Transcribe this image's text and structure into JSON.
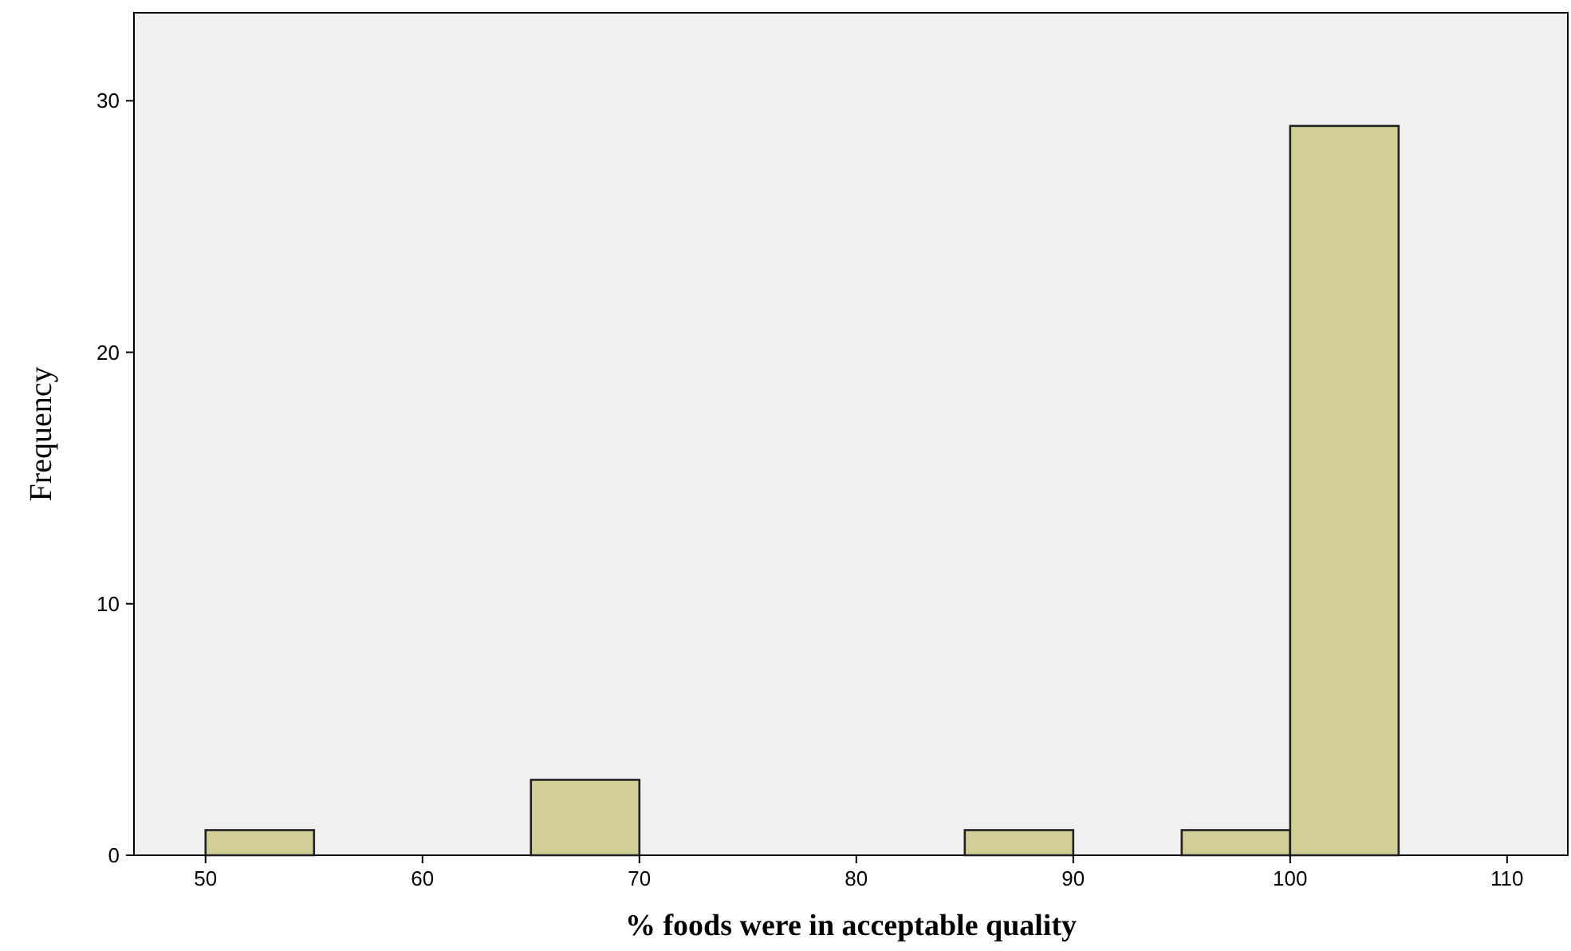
{
  "chart_data": {
    "type": "histogram",
    "xlabel": "% foods were in acceptable quality",
    "ylabel": "Frequency",
    "bins": [
      50,
      55,
      60,
      65,
      70,
      75,
      80,
      85,
      90,
      95,
      100,
      105
    ],
    "values": [
      1,
      0,
      0,
      3,
      0,
      0,
      0,
      1,
      0,
      1,
      29
    ],
    "color": "#d3ce96",
    "xlim": [
      46.7,
      112.8
    ],
    "xticks": [
      50,
      60,
      70,
      80,
      90,
      100,
      110
    ],
    "ylim": [
      0,
      33.5
    ],
    "yticks": [
      0,
      10,
      20,
      30
    ],
    "grid": false
  }
}
